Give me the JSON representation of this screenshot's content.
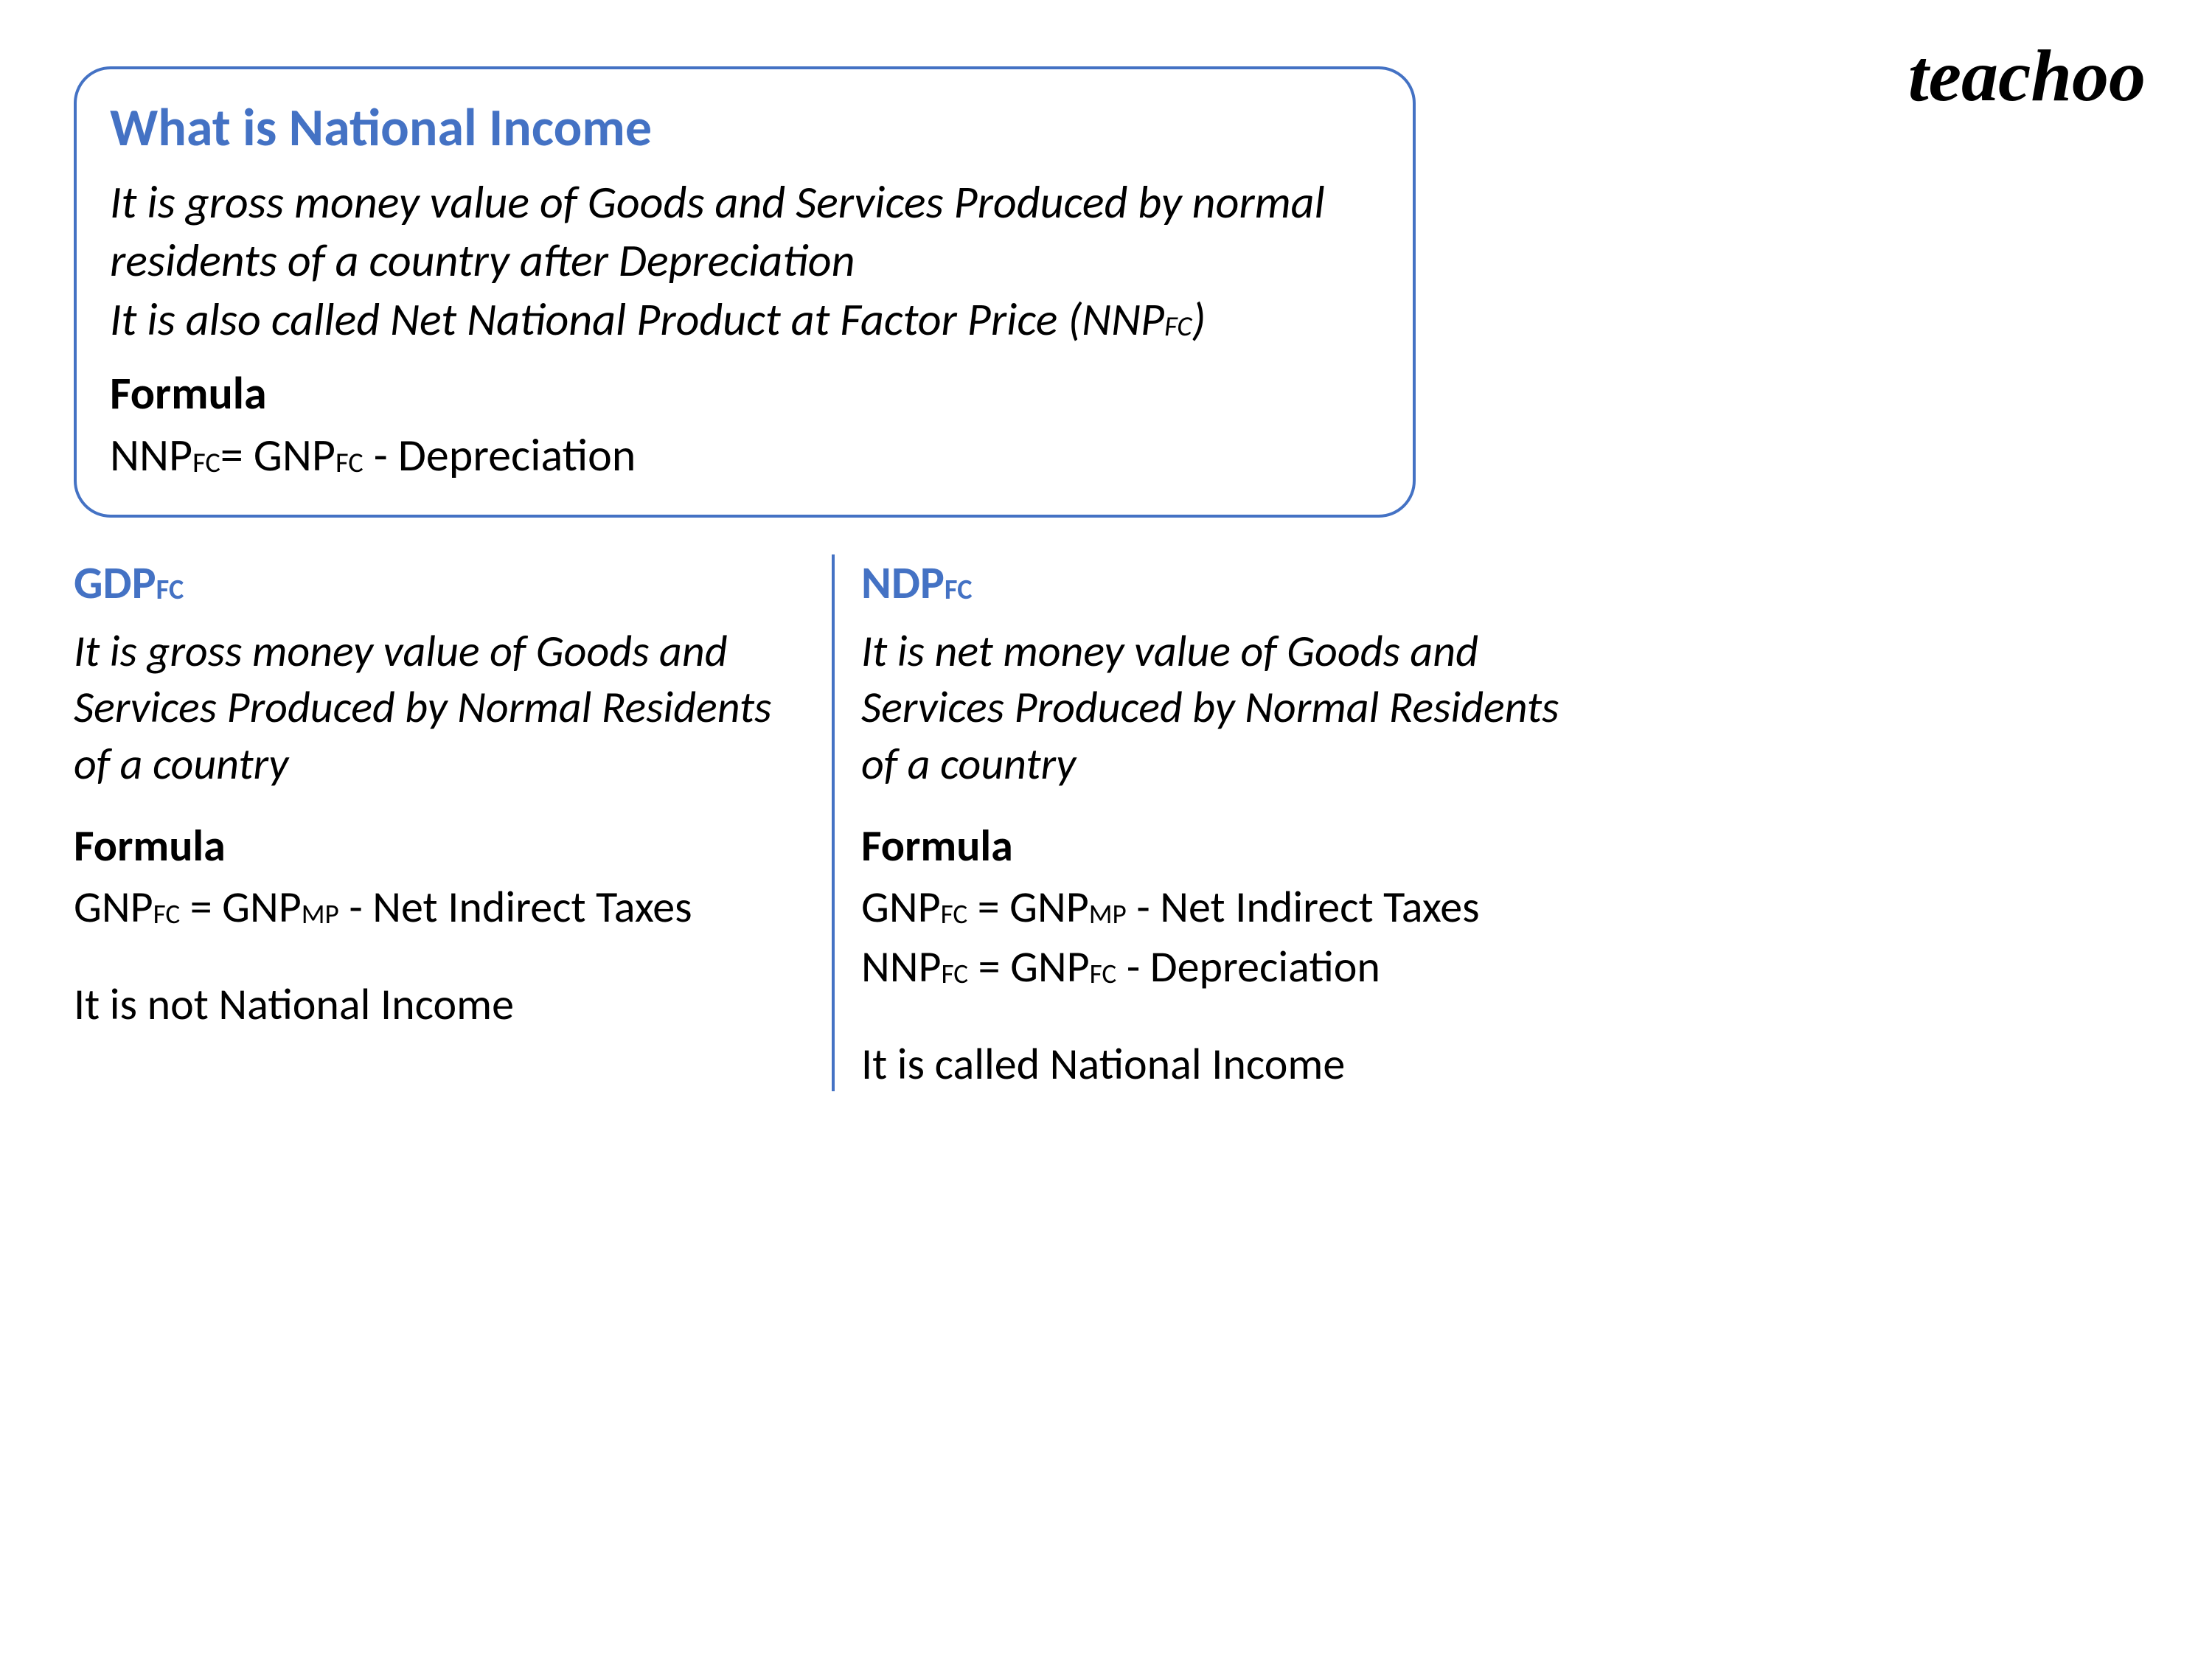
{
  "logo": "teachoo",
  "box": {
    "title": "What is National Income",
    "desc_line1": "It is gross money value of Goods and Services Produced by normal residents of a country after Depreciation",
    "desc_line2_pre": "It is also called Net National Product at Factor Price (NNP",
    "desc_line2_sub": "FC",
    "desc_line2_post": ")",
    "formula_label": "Formula",
    "formula_lhs": "NNP",
    "formula_lhs_sub": "FC",
    "formula_mid": "= GNP",
    "formula_rhs_sub": "FC",
    "formula_tail": " - Depreciation"
  },
  "left": {
    "title": "GDP",
    "title_sub": "FC",
    "desc": "It is gross money value of Goods and Services Produced by Normal Residents of a country",
    "formula_label": "Formula",
    "f1_a": "GNP",
    "f1_a_sub": "FC",
    "f1_b": "  = GNP",
    "f1_b_sub": "MP",
    "f1_c": " - Net Indirect Taxes",
    "note": "It is not National Income"
  },
  "right": {
    "title": "NDP",
    "title_sub": "FC",
    "desc": "It is net money value of Goods and Services Produced by Normal Residents of a country",
    "formula_label": "Formula",
    "f1_a": "GNP",
    "f1_a_sub": "FC",
    "f1_b": "  = GNP",
    "f1_b_sub": "MP",
    "f1_c": " - Net Indirect Taxes",
    "f2_a": "NNP",
    "f2_a_sub": "FC",
    "f2_b": "   = GNP",
    "f2_b_sub": "FC",
    "f2_c": " - Depreciation",
    "note": "It is called National Income"
  }
}
